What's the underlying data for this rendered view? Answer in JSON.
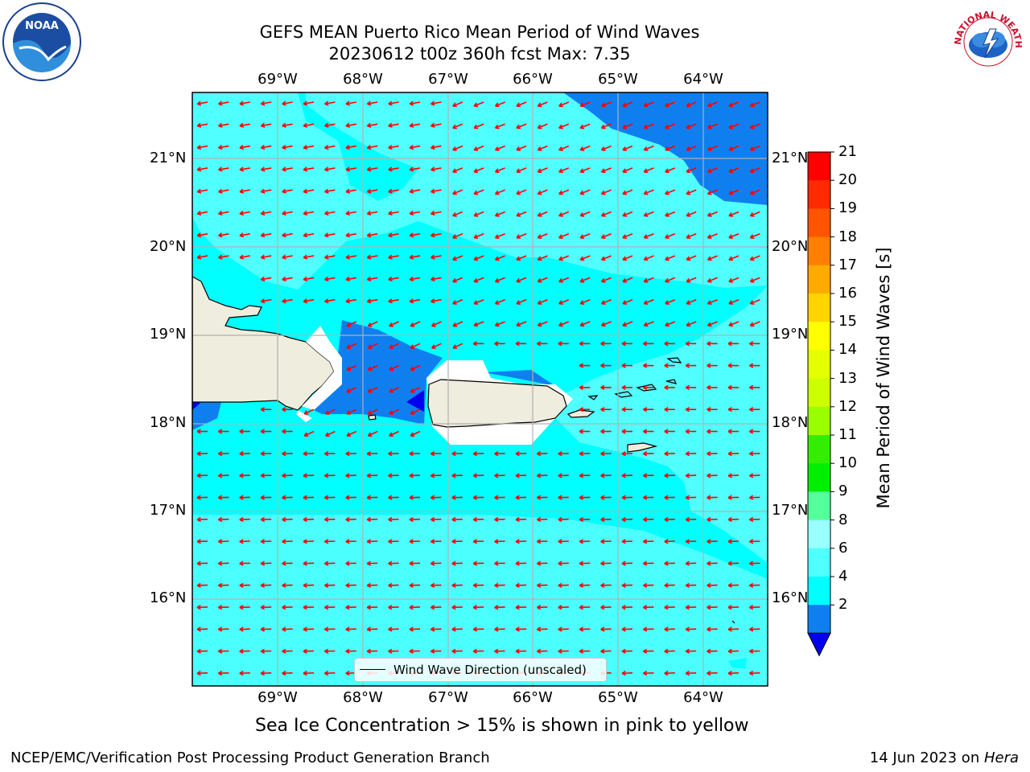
{
  "title": {
    "line1": "GEFS MEAN Puerto Rico Mean Period of Wind Waves",
    "line2": "20230612 t00z 360h fcst   Max: 7.35"
  },
  "logos": {
    "left": "NOAA",
    "right": "NATIONAL WEATHER SERVICE"
  },
  "map": {
    "lon_labels": [
      "69°W",
      "68°W",
      "67°W",
      "66°W",
      "65°W",
      "64°W"
    ],
    "lat_labels": [
      "21°N",
      "20°N",
      "19°N",
      "18°N",
      "17°N",
      "16°N"
    ],
    "legend_text": "Wind Wave Direction (unscaled)",
    "colors": {
      "band_2_4": "#0f7ff0",
      "band_4_6": "#00ffff",
      "band_6_8": "#50ffff",
      "band_below_2": "#0000ee",
      "land": "#efeddd",
      "arrow": "#ff0000",
      "grid": "#b0b0b0"
    }
  },
  "colorbar": {
    "label": "Mean Period of Wind Waves [s]",
    "ticks": [
      "21",
      "20",
      "19",
      "18",
      "17",
      "16",
      "15",
      "14",
      "13",
      "12",
      "11",
      "10",
      "9",
      "8",
      "6",
      "4",
      "2"
    ],
    "colors": [
      "#ff0000",
      "#ff2a00",
      "#ff5500",
      "#ff8000",
      "#ffaa00",
      "#ffd400",
      "#ffff00",
      "#e5ff00",
      "#ccff00",
      "#99ff00",
      "#33ee00",
      "#00ee00",
      "#55ff99",
      "#99ffff",
      "#50ffff",
      "#00ffff",
      "#0f7ff0"
    ],
    "under_color": "#0000ee"
  },
  "caption": "Sea Ice Concentration > 15% is shown in pink to yellow",
  "footer": {
    "left": "NCEP/EMC/Verification Post Processing Product Generation Branch",
    "right_date": "14 Jun 2023 on ",
    "right_host": "Hera"
  }
}
